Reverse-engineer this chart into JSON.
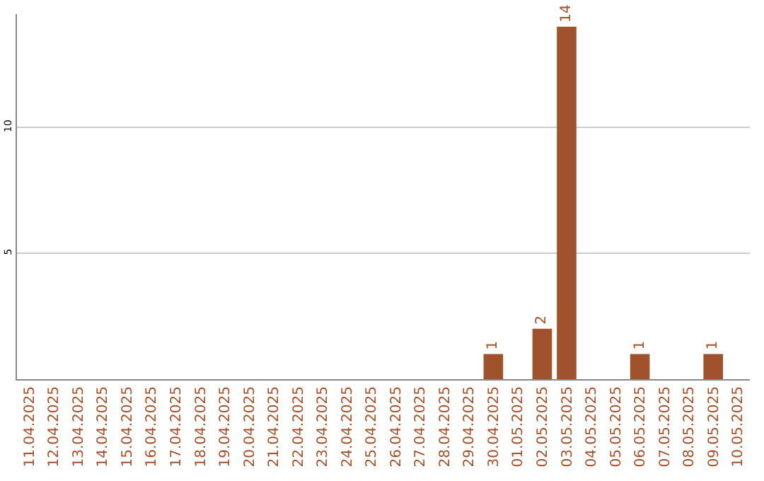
{
  "chart_data": {
    "type": "bar",
    "categories": [
      "11.04.2025",
      "12.04.2025",
      "13.04.2025",
      "14.04.2025",
      "15.04.2025",
      "16.04.2025",
      "17.04.2025",
      "18.04.2025",
      "19.04.2025",
      "20.04.2025",
      "21.04.2025",
      "22.04.2025",
      "23.04.2025",
      "24.04.2025",
      "25.04.2025",
      "26.04.2025",
      "27.04.2025",
      "28.04.2025",
      "29.04.2025",
      "30.04.2025",
      "01.05.2025",
      "02.05.2025",
      "03.05.2025",
      "04.05.2025",
      "05.05.2025",
      "06.05.2025",
      "07.05.2025",
      "08.05.2025",
      "09.05.2025",
      "10.05.2025"
    ],
    "values": [
      0,
      0,
      0,
      0,
      0,
      0,
      0,
      0,
      0,
      0,
      0,
      0,
      0,
      0,
      0,
      0,
      0,
      0,
      0,
      1,
      0,
      2,
      14,
      0,
      0,
      1,
      0,
      0,
      1,
      0
    ],
    "value_labels": [
      null,
      null,
      null,
      null,
      null,
      null,
      null,
      null,
      null,
      null,
      null,
      null,
      null,
      null,
      null,
      null,
      null,
      null,
      null,
      "1",
      null,
      "2",
      "14",
      null,
      null,
      "1",
      null,
      null,
      "1",
      null
    ],
    "color": "#a0522d",
    "ylim": [
      0,
      14.5
    ],
    "yticks": [
      5,
      10
    ],
    "grid": "y"
  }
}
